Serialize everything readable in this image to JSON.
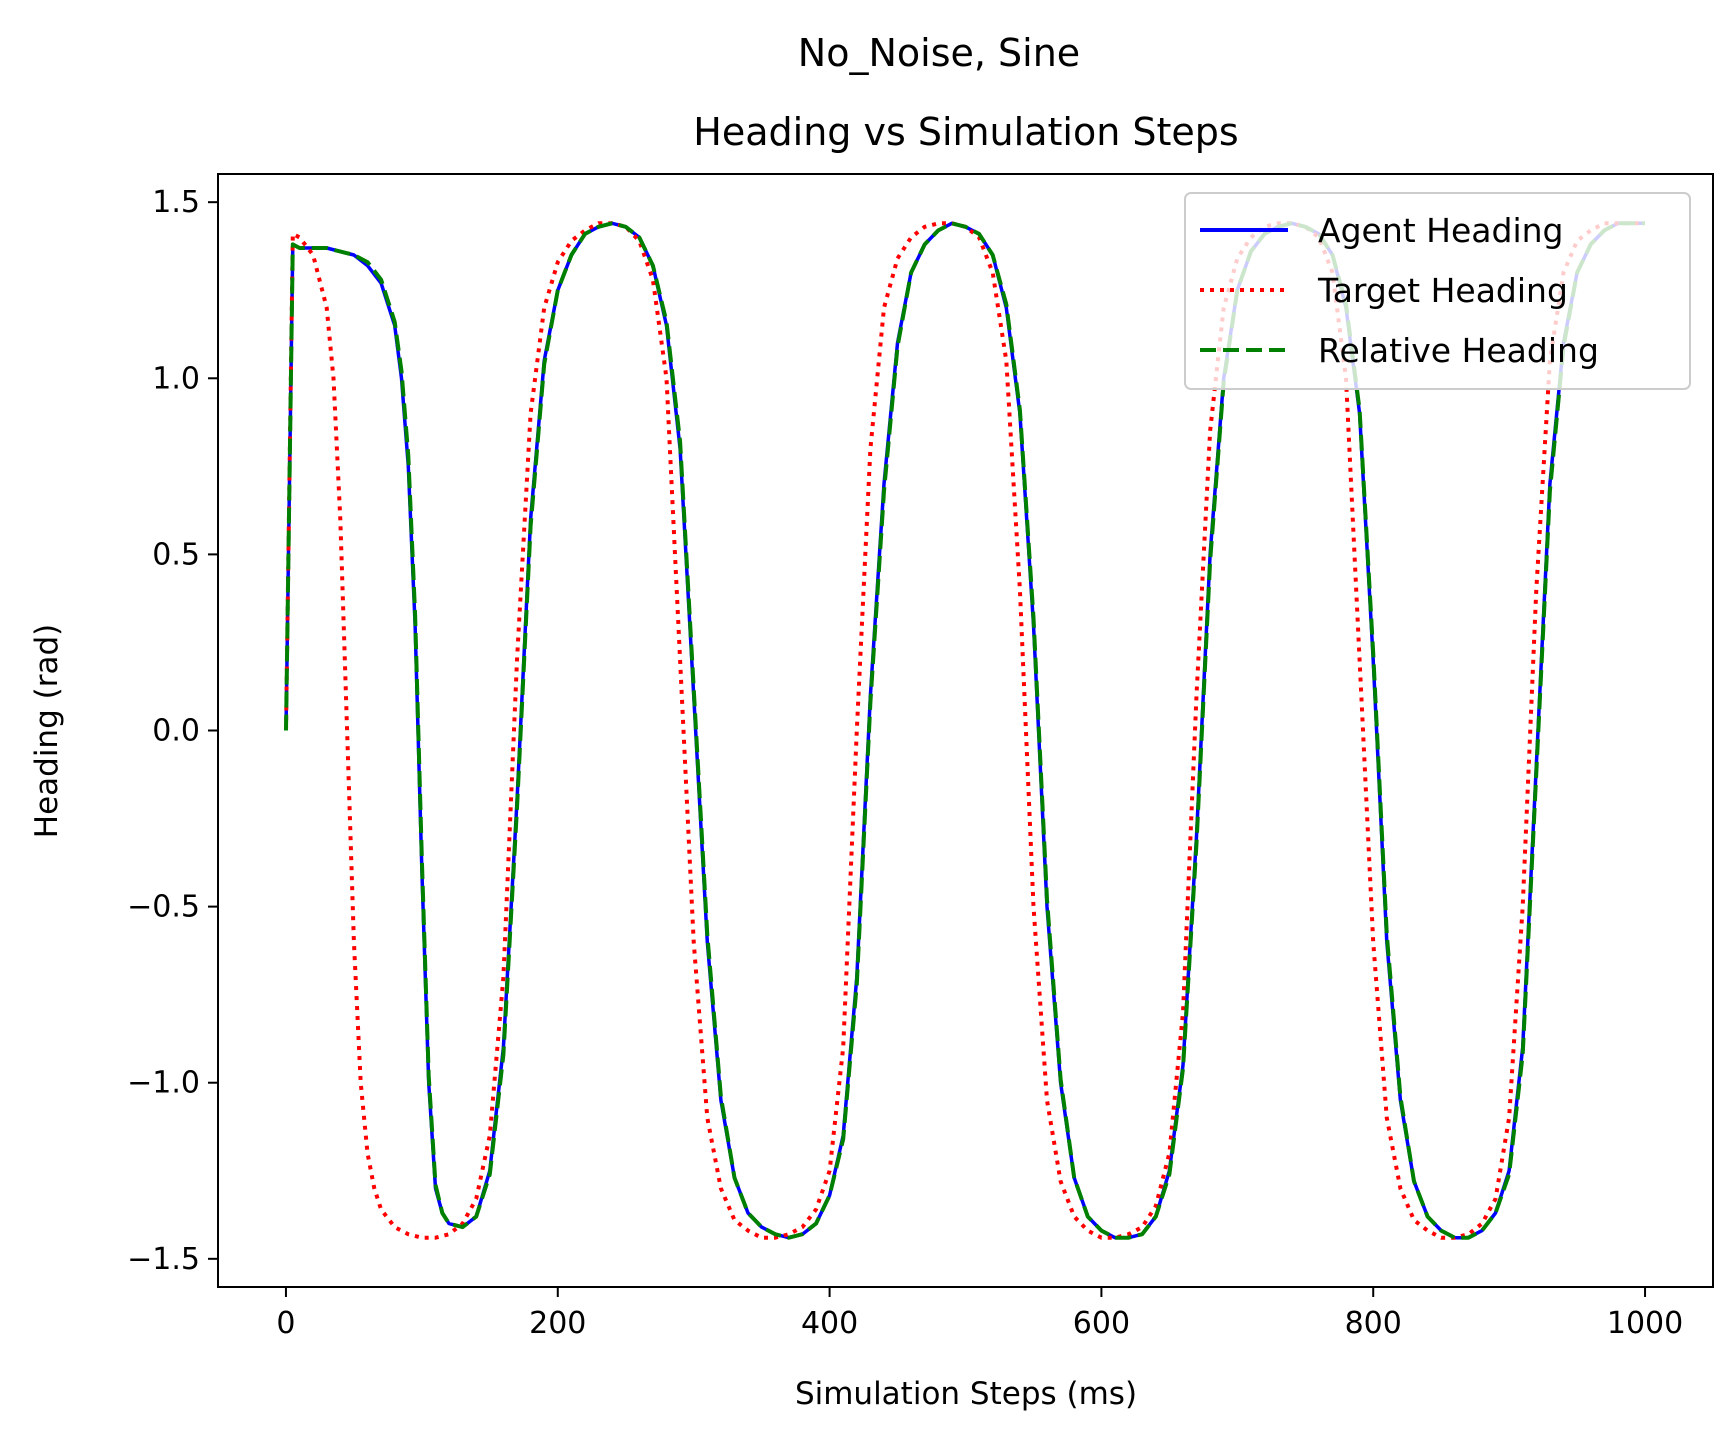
{
  "chart_data": {
    "type": "line",
    "suptitle": "No_Noise, Sine",
    "title": "Heading vs Simulation Steps",
    "xlabel": "Simulation Steps (ms)",
    "ylabel": "Heading (rad)",
    "xlim": [
      -50,
      1050
    ],
    "ylim": [
      -1.58,
      1.58
    ],
    "xticks": [
      0,
      200,
      400,
      600,
      800,
      1000
    ],
    "xtick_labels": [
      "0",
      "200",
      "400",
      "600",
      "800",
      "1000"
    ],
    "yticks": [
      1.5,
      1.0,
      0.5,
      0.0,
      -0.5,
      -1.0,
      -1.5
    ],
    "ytick_labels": [
      "1.5",
      "1.0",
      "0.5",
      "0.0",
      "−0.5",
      "−1.0",
      "−1.5"
    ],
    "grid": false,
    "legend_position": "top-right",
    "series": [
      {
        "name": "Agent Heading",
        "color": "#0000ff",
        "style": "solid",
        "x": [
          0,
          5,
          10,
          20,
          30,
          40,
          50,
          60,
          70,
          80,
          85,
          90,
          95,
          100,
          105,
          110,
          115,
          120,
          130,
          140,
          150,
          160,
          170,
          180,
          190,
          200,
          210,
          220,
          230,
          240,
          250,
          260,
          270,
          280,
          290,
          300,
          310,
          320,
          330,
          340,
          350,
          360,
          370,
          380,
          390,
          400,
          410,
          420,
          430,
          440,
          450,
          460,
          470,
          480,
          490,
          500,
          510,
          520,
          530,
          540,
          550,
          560,
          570,
          580,
          590,
          600,
          610,
          620,
          630,
          640,
          650,
          660,
          670,
          680,
          690,
          700,
          710,
          720,
          730,
          740,
          750,
          760,
          770,
          780,
          790,
          800,
          810,
          820,
          830,
          840,
          850,
          860,
          870,
          880,
          890,
          900,
          910,
          920,
          930,
          940,
          950,
          960,
          970,
          980,
          990,
          1000
        ],
        "y": [
          0.0,
          1.38,
          1.37,
          1.37,
          1.37,
          1.36,
          1.35,
          1.32,
          1.27,
          1.15,
          1.0,
          0.75,
          0.3,
          -0.4,
          -1.0,
          -1.3,
          -1.37,
          -1.4,
          -1.41,
          -1.38,
          -1.25,
          -0.9,
          -0.2,
          0.6,
          1.05,
          1.25,
          1.35,
          1.41,
          1.43,
          1.44,
          1.43,
          1.4,
          1.32,
          1.15,
          0.8,
          0.1,
          -0.6,
          -1.05,
          -1.27,
          -1.37,
          -1.41,
          -1.43,
          -1.44,
          -1.43,
          -1.4,
          -1.32,
          -1.15,
          -0.7,
          0.1,
          0.7,
          1.1,
          1.3,
          1.38,
          1.42,
          1.44,
          1.43,
          1.41,
          1.35,
          1.2,
          0.9,
          0.3,
          -0.5,
          -1.0,
          -1.27,
          -1.38,
          -1.42,
          -1.44,
          -1.44,
          -1.43,
          -1.38,
          -1.25,
          -0.95,
          -0.3,
          0.5,
          1.0,
          1.25,
          1.36,
          1.41,
          1.43,
          1.44,
          1.43,
          1.41,
          1.35,
          1.2,
          0.9,
          0.2,
          -0.6,
          -1.05,
          -1.28,
          -1.38,
          -1.42,
          -1.44,
          -1.44,
          -1.42,
          -1.37,
          -1.25,
          -0.9,
          -0.1,
          0.7,
          1.1,
          1.3,
          1.38,
          1.42,
          1.44,
          1.44,
          1.44
        ]
      },
      {
        "name": "Target Heading",
        "color": "#ff0000",
        "style": "dotted",
        "x": [
          0,
          5,
          10,
          20,
          30,
          35,
          40,
          45,
          50,
          55,
          60,
          65,
          70,
          80,
          90,
          100,
          110,
          120,
          130,
          140,
          150,
          160,
          170,
          180,
          190,
          200,
          210,
          220,
          230,
          240,
          250,
          260,
          270,
          280,
          290,
          300,
          310,
          320,
          330,
          340,
          350,
          360,
          370,
          380,
          390,
          400,
          410,
          420,
          430,
          440,
          450,
          460,
          470,
          480,
          490,
          500,
          510,
          520,
          530,
          540,
          550,
          560,
          570,
          580,
          590,
          600,
          610,
          620,
          630,
          640,
          650,
          660,
          670,
          680,
          690,
          700,
          710,
          720,
          730,
          740,
          750,
          760,
          770,
          780,
          790,
          800,
          810,
          820,
          830,
          840,
          850,
          860,
          870,
          880,
          890,
          900,
          910,
          920,
          930,
          940,
          950,
          960,
          970,
          980,
          990,
          1000
        ],
        "y": [
          0.0,
          1.41,
          1.4,
          1.35,
          1.2,
          1.0,
          0.6,
          0.0,
          -0.6,
          -1.0,
          -1.2,
          -1.3,
          -1.36,
          -1.41,
          -1.43,
          -1.44,
          -1.44,
          -1.43,
          -1.4,
          -1.33,
          -1.15,
          -0.7,
          0.2,
          0.9,
          1.2,
          1.33,
          1.39,
          1.42,
          1.44,
          1.44,
          1.43,
          1.39,
          1.28,
          1.0,
          0.2,
          -0.6,
          -1.1,
          -1.3,
          -1.39,
          -1.42,
          -1.44,
          -1.44,
          -1.43,
          -1.41,
          -1.36,
          -1.25,
          -0.9,
          0.0,
          0.8,
          1.2,
          1.34,
          1.4,
          1.43,
          1.44,
          1.44,
          1.43,
          1.4,
          1.3,
          1.05,
          0.4,
          -0.5,
          -1.05,
          -1.28,
          -1.38,
          -1.42,
          -1.44,
          -1.44,
          -1.43,
          -1.41,
          -1.35,
          -1.2,
          -0.8,
          0.1,
          0.85,
          1.2,
          1.34,
          1.4,
          1.43,
          1.44,
          1.44,
          1.43,
          1.4,
          1.3,
          1.0,
          0.2,
          -0.6,
          -1.1,
          -1.3,
          -1.39,
          -1.42,
          -1.44,
          -1.44,
          -1.43,
          -1.4,
          -1.33,
          -1.1,
          -0.5,
          0.4,
          1.05,
          1.3,
          1.39,
          1.42,
          1.44,
          1.44,
          1.44,
          1.44
        ]
      },
      {
        "name": "Relative Heading",
        "color": "#008000",
        "style": "dashed",
        "x": [
          0,
          5,
          10,
          20,
          30,
          40,
          50,
          60,
          70,
          80,
          85,
          90,
          95,
          100,
          105,
          110,
          115,
          120,
          130,
          140,
          150,
          160,
          170,
          180,
          190,
          200,
          210,
          220,
          230,
          240,
          250,
          260,
          270,
          280,
          290,
          300,
          310,
          320,
          330,
          340,
          350,
          360,
          370,
          380,
          390,
          400,
          410,
          420,
          430,
          440,
          450,
          460,
          470,
          480,
          490,
          500,
          510,
          520,
          530,
          540,
          550,
          560,
          570,
          580,
          590,
          600,
          610,
          620,
          630,
          640,
          650,
          660,
          670,
          680,
          690,
          700,
          710,
          720,
          730,
          740,
          750,
          760,
          770,
          780,
          790,
          800,
          810,
          820,
          830,
          840,
          850,
          860,
          870,
          880,
          890,
          900,
          910,
          920,
          930,
          940,
          950,
          960,
          970,
          980,
          990,
          1000
        ],
        "y": [
          0.0,
          1.38,
          1.37,
          1.37,
          1.37,
          1.36,
          1.35,
          1.33,
          1.28,
          1.16,
          1.02,
          0.78,
          0.33,
          -0.37,
          -0.98,
          -1.29,
          -1.37,
          -1.4,
          -1.41,
          -1.38,
          -1.26,
          -0.92,
          -0.22,
          0.58,
          1.04,
          1.25,
          1.35,
          1.41,
          1.43,
          1.44,
          1.43,
          1.4,
          1.32,
          1.16,
          0.82,
          0.12,
          -0.58,
          -1.04,
          -1.27,
          -1.37,
          -1.41,
          -1.43,
          -1.44,
          -1.43,
          -1.4,
          -1.32,
          -1.16,
          -0.72,
          0.08,
          0.68,
          1.09,
          1.3,
          1.38,
          1.42,
          1.44,
          1.43,
          1.41,
          1.35,
          1.21,
          0.91,
          0.32,
          -0.48,
          -0.99,
          -1.27,
          -1.38,
          -1.42,
          -1.44,
          -1.44,
          -1.43,
          -1.38,
          -1.26,
          -0.96,
          -0.32,
          0.48,
          0.99,
          1.25,
          1.36,
          1.41,
          1.43,
          1.44,
          1.43,
          1.41,
          1.35,
          1.21,
          0.91,
          0.22,
          -0.58,
          -1.04,
          -1.28,
          -1.38,
          -1.42,
          -1.44,
          -1.44,
          -1.42,
          -1.37,
          -1.26,
          -0.92,
          -0.12,
          0.68,
          1.09,
          1.3,
          1.38,
          1.42,
          1.44,
          1.44,
          1.44
        ]
      }
    ]
  }
}
